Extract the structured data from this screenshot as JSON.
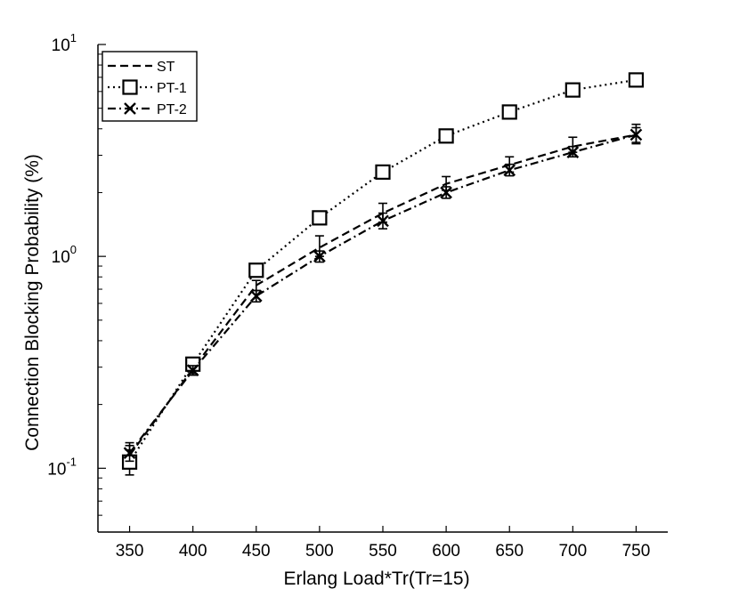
{
  "chart_data": {
    "type": "line",
    "xlabel": "Erlang Load*Tr(Tr=15)",
    "ylabel": "Connection Blocking Probability (%)",
    "x": [
      350,
      400,
      450,
      500,
      550,
      600,
      650,
      700,
      750
    ],
    "x_ticks": [
      "350",
      "400",
      "450",
      "500",
      "550",
      "600",
      "650",
      "700",
      "750"
    ],
    "xlim": [
      325,
      775
    ],
    "y_scale": "log",
    "ylim": [
      0.05,
      10
    ],
    "y_ticks": [
      {
        "value": 0.1,
        "base": "10",
        "exp": "-1"
      },
      {
        "value": 1,
        "base": "10",
        "exp": "0"
      },
      {
        "value": 10,
        "base": "10",
        "exp": "1"
      }
    ],
    "grid": false,
    "legend_position": "top-left",
    "series": [
      {
        "name": "ST",
        "style": "dashed",
        "marker": "none",
        "color": "#000000",
        "values": [
          0.115,
          0.295,
          0.73,
          1.1,
          1.6,
          2.2,
          2.7,
          3.3,
          3.75
        ],
        "err_low": [
          0.1,
          0.28,
          0.69,
          1.0,
          1.45,
          2.05,
          2.5,
          3.1,
          3.45
        ],
        "err_high": [
          0.132,
          0.315,
          0.77,
          1.25,
          1.78,
          2.38,
          2.95,
          3.65,
          4.2
        ]
      },
      {
        "name": "PT-1",
        "style": "dotted",
        "marker": "square",
        "color": "#000000",
        "values": [
          0.107,
          0.31,
          0.86,
          1.52,
          2.5,
          3.7,
          4.8,
          6.1,
          6.8
        ],
        "err_low": [
          0.093,
          0.29,
          0.82,
          1.45,
          2.4,
          3.55,
          4.6,
          5.75,
          6.35
        ],
        "err_high": [
          0.122,
          0.33,
          0.9,
          1.6,
          2.62,
          3.88,
          5.0,
          6.45,
          7.2
        ]
      },
      {
        "name": "PT-2",
        "style": "dashdot",
        "marker": "x",
        "color": "#000000",
        "values": [
          0.118,
          0.29,
          0.65,
          1.0,
          1.47,
          2.0,
          2.55,
          3.1,
          3.75
        ],
        "err_low": [
          0.108,
          0.275,
          0.61,
          0.94,
          1.35,
          1.88,
          2.4,
          2.95,
          3.4
        ],
        "err_high": [
          0.128,
          0.305,
          0.69,
          1.06,
          1.6,
          2.13,
          2.72,
          3.3,
          4.05
        ]
      }
    ]
  }
}
